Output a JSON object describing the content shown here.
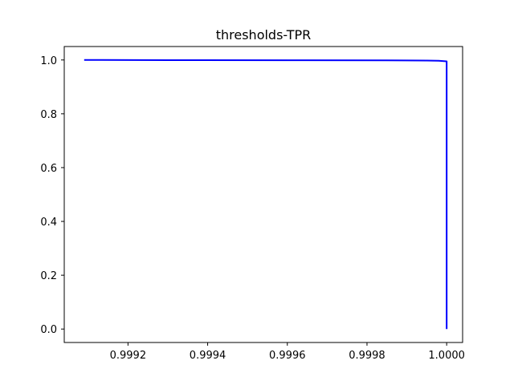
{
  "chart_data": {
    "type": "line",
    "title": "thresholds-TPR",
    "xlabel": "",
    "ylabel": "",
    "xlim": [
      0.99904,
      1.00004
    ],
    "ylim": [
      -0.05,
      1.05
    ],
    "xticks": [
      0.9992,
      0.9994,
      0.9996,
      0.9998,
      1.0
    ],
    "xtick_labels": [
      "0.9992",
      "0.9994",
      "0.9996",
      "0.9998",
      "1.0000"
    ],
    "yticks": [
      0.0,
      0.2,
      0.4,
      0.6,
      0.8,
      1.0
    ],
    "ytick_labels": [
      "0.0",
      "0.2",
      "0.4",
      "0.6",
      "0.8",
      "1.0"
    ],
    "grid": false,
    "series": [
      {
        "color": "#0000ff",
        "x": [
          0.99909,
          0.9993,
          0.9996,
          0.99985,
          0.99995,
          0.99998,
          1.0,
          1.0
        ],
        "y": [
          1.0,
          0.9995,
          0.999,
          0.9985,
          0.998,
          0.997,
          0.995,
          0.0
        ]
      }
    ]
  }
}
